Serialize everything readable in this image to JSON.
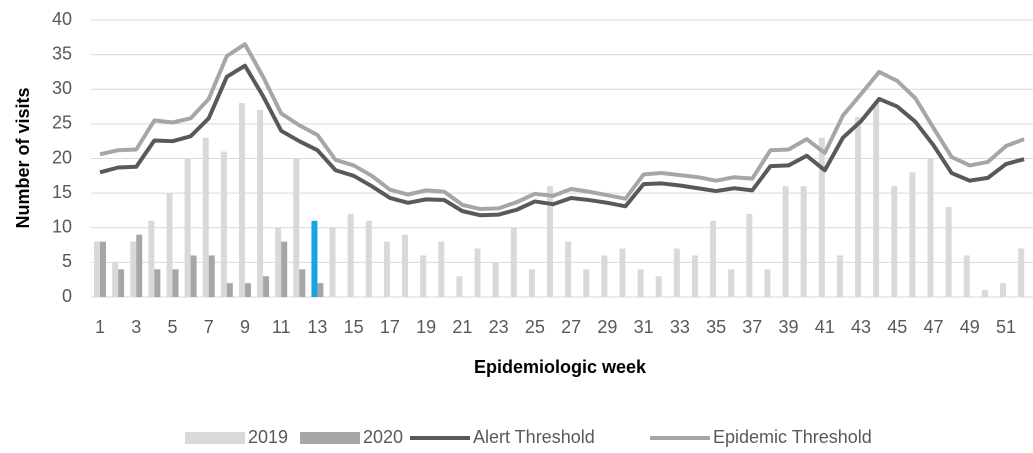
{
  "chart_data": {
    "type": "bar",
    "x_label": "Epidemiologic week",
    "y_label": "Number of visits",
    "categories": [
      "1",
      null,
      "3",
      null,
      "5",
      null,
      "7",
      null,
      "9",
      null,
      "11",
      null,
      "13",
      null,
      "15",
      null,
      "17",
      null,
      "19",
      null,
      "21",
      null,
      "23",
      null,
      "25",
      null,
      "27",
      null,
      "29",
      null,
      "31",
      null,
      "33",
      null,
      "35",
      null,
      "37",
      null,
      "39",
      null,
      "41",
      null,
      "43",
      null,
      "45",
      null,
      "47",
      null,
      "49",
      null,
      "51",
      null
    ],
    "series": [
      {
        "name": "2019",
        "type": "bar",
        "color": "#d9d9d9",
        "highlight_index": 12,
        "highlight_color": "#1aa3e0",
        "values": [
          8,
          5,
          8,
          11,
          15,
          20,
          23,
          21,
          28,
          27,
          10,
          20,
          11,
          10,
          12,
          11,
          8,
          9,
          6,
          8,
          3,
          7,
          5,
          10,
          4,
          16,
          8,
          4,
          6,
          7,
          4,
          3,
          7,
          6,
          11,
          4,
          12,
          4,
          16,
          16,
          23,
          6,
          26,
          28,
          16,
          18,
          20,
          13,
          6,
          1,
          2,
          7
        ]
      },
      {
        "name": "2020",
        "type": "bar",
        "color": "#a6a6a6",
        "values": [
          8,
          4,
          9,
          4,
          4,
          6,
          6,
          2,
          2,
          3,
          8,
          4,
          2,
          null,
          null,
          null,
          null,
          null,
          null,
          null,
          null,
          null,
          null,
          null,
          null,
          null,
          null,
          null,
          null,
          null,
          null,
          null,
          null,
          null,
          null,
          null,
          null,
          null,
          null,
          null,
          null,
          null,
          null,
          null,
          null,
          null,
          null,
          null,
          null,
          null,
          null,
          null
        ]
      },
      {
        "name": "Alert Threshold",
        "type": "line",
        "color": "#595959",
        "values": [
          18,
          18.7,
          18.8,
          22.6,
          22.5,
          23.2,
          25.8,
          31.8,
          33.4,
          29,
          24,
          22.5,
          21.2,
          18.3,
          17.5,
          16,
          14.3,
          13.6,
          14.1,
          14,
          12.4,
          11.8,
          11.9,
          12.6,
          13.8,
          13.4,
          14.3,
          14,
          13.6,
          13.1,
          16.3,
          16.4,
          16.1,
          15.7,
          15.3,
          15.7,
          15.4,
          18.9,
          19,
          20.4,
          18.3,
          23,
          25.4,
          28.6,
          27.5,
          25.3,
          21.9,
          17.9,
          16.8,
          17.2,
          19.2,
          19.9
        ]
      },
      {
        "name": "Epidemic Threshold",
        "type": "line",
        "color": "#a6a6a6",
        "values": [
          20.6,
          21.2,
          21.3,
          25.5,
          25.2,
          25.8,
          28.6,
          34.8,
          36.5,
          31.8,
          26.5,
          24.8,
          23.4,
          19.8,
          19,
          17.5,
          15.5,
          14.8,
          15.4,
          15.2,
          13.3,
          12.7,
          12.8,
          13.7,
          14.9,
          14.6,
          15.6,
          15.2,
          14.7,
          14.2,
          17.7,
          17.9,
          17.6,
          17.3,
          16.8,
          17.3,
          17.1,
          21.2,
          21.3,
          22.8,
          20.8,
          26.2,
          29.3,
          32.5,
          31.2,
          28.7,
          24.4,
          20.2,
          19,
          19.5,
          21.8,
          22.8
        ]
      }
    ],
    "ylim": [
      0,
      40
    ],
    "yticks": [
      0,
      5,
      10,
      15,
      20,
      25,
      30,
      35,
      40
    ],
    "grid": true,
    "legend": "bottom"
  }
}
